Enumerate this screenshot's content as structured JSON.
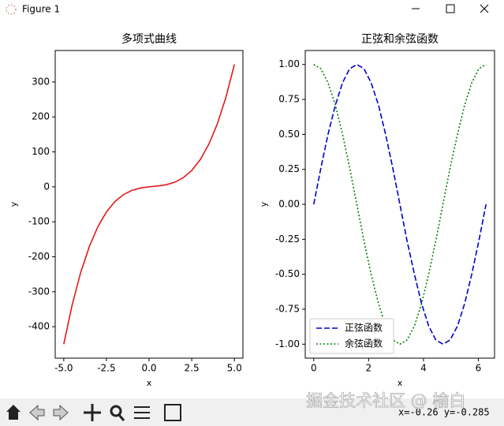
{
  "window": {
    "title": "Figure 1",
    "status": "x=-0.26 y=-0.285",
    "watermark": "掘金技术社区 @ 榆白"
  },
  "chart_data": [
    {
      "type": "line",
      "title": "多项式曲线",
      "x_label": "x",
      "y_label": "y",
      "x": [
        -5,
        -4.5,
        -4,
        -3.5,
        -3,
        -2.5,
        -2,
        -1.5,
        -1,
        -0.5,
        0,
        0.5,
        1,
        1.5,
        2,
        2.5,
        3,
        3.5,
        4,
        4.5,
        5
      ],
      "series": [
        {
          "color": "#e31a1c",
          "style": "solid",
          "values": [
            -450,
            -336.4,
            -244,
            -170.6,
            -114,
            -71.9,
            -42,
            -22.1,
            -10,
            -3.4,
            0,
            2.4,
            6,
            13.1,
            26,
            46.9,
            78,
            121.6,
            180,
            255.4,
            350
          ]
        }
      ],
      "xlim": [
        -5.5,
        5.5
      ],
      "ylim": [
        -490,
        390
      ],
      "xticks": [
        {
          "value": -5,
          "label": "-5.0"
        },
        -2.5,
        {
          "value": 0,
          "label": "0.0"
        },
        2.5,
        {
          "value": 5,
          "label": "5.0"
        }
      ],
      "yticks": [
        -400,
        -300,
        -200,
        -100,
        0,
        100,
        200,
        300
      ]
    },
    {
      "type": "line",
      "title": "正弦和余弦函数",
      "x_label": "x",
      "y_label": "y",
      "legend": "lower left",
      "x": [
        0,
        0.26,
        0.52,
        0.79,
        1.05,
        1.31,
        1.57,
        1.83,
        2.09,
        2.36,
        2.62,
        2.88,
        3.14,
        3.4,
        3.67,
        3.93,
        4.19,
        4.45,
        4.71,
        4.97,
        5.24,
        5.5,
        5.76,
        6.02,
        6.28
      ],
      "series": [
        {
          "name": "正弦函数",
          "color": "#0000cc",
          "style": "dashed",
          "values": [
            0,
            0.26,
            0.5,
            0.71,
            0.87,
            0.97,
            1,
            0.97,
            0.87,
            0.71,
            0.5,
            0.26,
            0,
            -0.26,
            -0.5,
            -0.71,
            -0.87,
            -0.97,
            -1,
            -0.97,
            -0.87,
            -0.71,
            -0.5,
            -0.26,
            0
          ]
        },
        {
          "name": "余弦函数",
          "color": "#008000",
          "style": "dotted",
          "values": [
            1,
            0.97,
            0.87,
            0.71,
            0.5,
            0.26,
            0,
            -0.26,
            -0.5,
            -0.71,
            -0.87,
            -0.97,
            -1,
            -0.97,
            -0.87,
            -0.71,
            -0.5,
            -0.26,
            0,
            0.26,
            0.5,
            0.71,
            0.87,
            0.97,
            1
          ]
        }
      ],
      "xlim": [
        -0.31,
        6.59
      ],
      "ylim": [
        -1.1,
        1.1
      ],
      "xticks": [
        0,
        2,
        4,
        6
      ],
      "yticks": [
        {
          "value": -1,
          "label": "-1.00"
        },
        {
          "value": -0.75,
          "label": "-0.75"
        },
        {
          "value": -0.5,
          "label": "-0.50"
        },
        {
          "value": -0.25,
          "label": "-0.25"
        },
        {
          "value": 0,
          "label": "0.00"
        },
        {
          "value": 0.25,
          "label": "0.25"
        },
        {
          "value": 0.5,
          "label": "0.50"
        },
        {
          "value": 0.75,
          "label": "0.75"
        },
        {
          "value": 1,
          "label": "1.00"
        }
      ]
    }
  ]
}
